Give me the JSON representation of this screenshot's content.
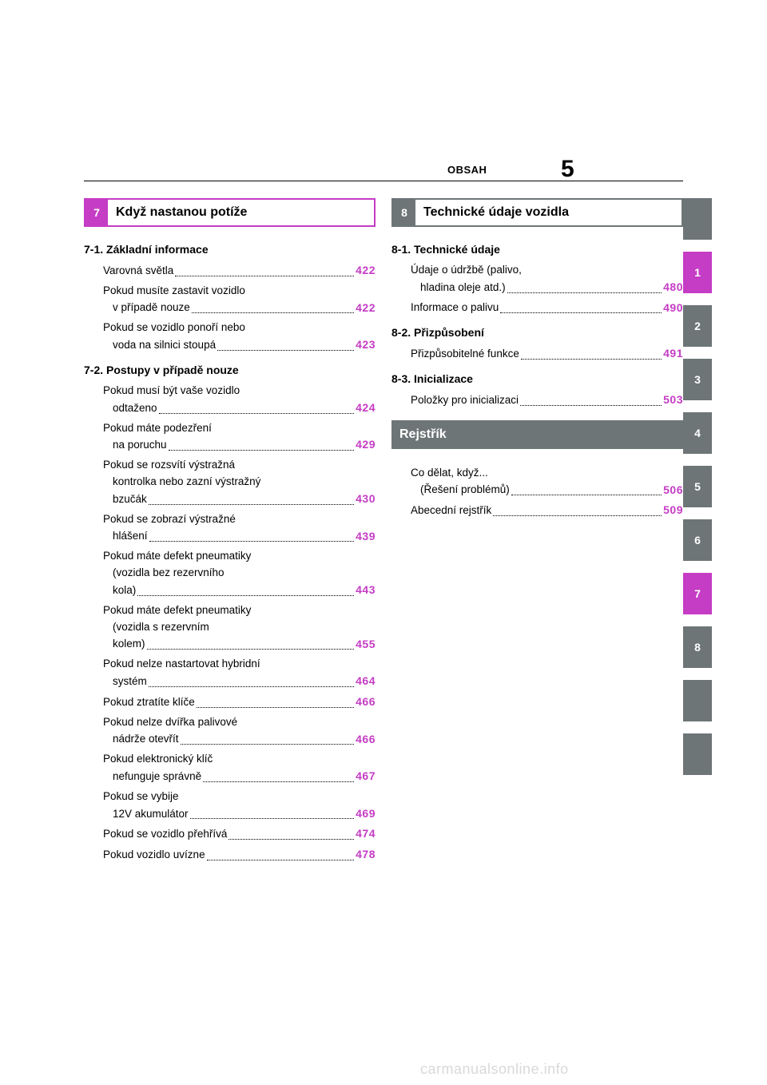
{
  "header": {
    "label": "OBSAH",
    "page_number": "5"
  },
  "colors": {
    "accent": "#c53cc5",
    "gray": "#6e7577",
    "page_ref": "#c53cc5"
  },
  "section7": {
    "num": "7",
    "title": "Když nastanou potíže",
    "sub1": {
      "heading": "7-1.  Základní informace",
      "items": [
        {
          "l1": "Varovná světla",
          "pg": "422"
        },
        {
          "l1": "Pokud musíte zastavit vozidlo",
          "l2": "v případě nouze",
          "pg": "422"
        },
        {
          "l1": "Pokud se vozidlo ponoří nebo",
          "l2": "voda na silnici stoupá",
          "pg": "423"
        }
      ]
    },
    "sub2": {
      "heading": "7-2.  Postupy v případě nouze",
      "items": [
        {
          "l1": "Pokud musí být vaše vozidlo",
          "l2": "odtaženo",
          "pg": "424"
        },
        {
          "l1": "Pokud máte podezření",
          "l2": "na poruchu",
          "pg": "429"
        },
        {
          "l1": "Pokud se rozsvítí výstražná",
          "l2": "kontrolka nebo zazní výstražný",
          "l3": "bzučák",
          "pg": "430"
        },
        {
          "l1": "Pokud se zobrazí výstražné",
          "l2": "hlášení",
          "pg": "439"
        },
        {
          "l1": "Pokud máte defekt pneumatiky",
          "l2": "(vozidla bez rezervního",
          "l3": "kola)",
          "pg": "443"
        },
        {
          "l1": "Pokud máte defekt pneumatiky",
          "l2": "(vozidla s rezervním",
          "l3": "kolem)",
          "pg": "455"
        },
        {
          "l1": "Pokud nelze nastartovat hybridní",
          "l2": "systém",
          "pg": "464"
        },
        {
          "l1": "Pokud ztratíte klíče",
          "pg": "466"
        },
        {
          "l1": "Pokud nelze dvířka palivové",
          "l2": "nádrže otevřít",
          "pg": "466"
        },
        {
          "l1": "Pokud elektronický klíč",
          "l2": "nefunguje správně",
          "pg": "467"
        },
        {
          "l1": "Pokud se vybije",
          "l2": "12V akumulátor",
          "pg": "469"
        },
        {
          "l1": "Pokud se vozidlo přehřívá",
          "pg": "474"
        },
        {
          "l1": "Pokud vozidlo uvízne",
          "pg": "478"
        }
      ]
    }
  },
  "section8": {
    "num": "8",
    "title": "Technické údaje vozidla",
    "sub1": {
      "heading": "8-1.  Technické údaje",
      "items": [
        {
          "l1": "Údaje o údržbě (palivo,",
          "l2": "hladina oleje atd.)",
          "pg": "480"
        },
        {
          "l1": "Informace o palivu",
          "pg": "490"
        }
      ]
    },
    "sub2": {
      "heading": "8-2.  Přizpůsobení",
      "items": [
        {
          "l1": "Přizpůsobitelné funkce",
          "pg": "491"
        }
      ]
    },
    "sub3": {
      "heading": "8-3.  Inicializace",
      "items": [
        {
          "l1": "Položky pro inicializaci",
          "pg": "503"
        }
      ]
    }
  },
  "index": {
    "title": "Rejstřík",
    "items": [
      {
        "l1": "Co dělat, když...",
        "l2": "(Řešení problémů)",
        "pg": "506"
      },
      {
        "l1": "Abecední rejstřík",
        "pg": "509"
      }
    ]
  },
  "tabs": [
    {
      "label": "",
      "style": "blank"
    },
    {
      "label": "1",
      "style": "pink"
    },
    {
      "label": "2",
      "style": "gray"
    },
    {
      "label": "3",
      "style": "gray"
    },
    {
      "label": "4",
      "style": "gray"
    },
    {
      "label": "5",
      "style": "gray"
    },
    {
      "label": "6",
      "style": "gray"
    },
    {
      "label": "7",
      "style": "pink"
    },
    {
      "label": "8",
      "style": "gray"
    },
    {
      "label": "",
      "style": "blank"
    },
    {
      "label": "",
      "style": "blank"
    }
  ],
  "watermark": "carmanualsonline.info"
}
